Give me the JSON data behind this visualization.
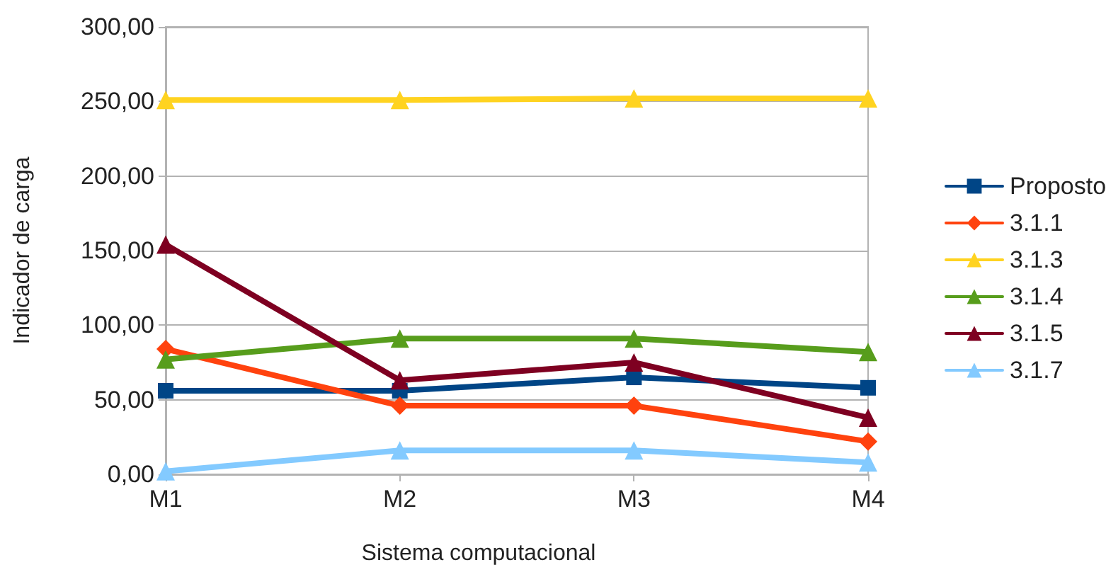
{
  "chart_data": {
    "type": "line",
    "xlabel": "Sistema computacional",
    "ylabel": "Indicador de carga",
    "categories": [
      "M1",
      "M2",
      "M3",
      "M4"
    ],
    "series": [
      {
        "name": "Proposto",
        "color": "#004586",
        "marker": "square",
        "values": [
          56,
          56,
          65,
          58
        ]
      },
      {
        "name": "3.1.1",
        "color": "#ff420e",
        "marker": "diamond",
        "values": [
          84,
          46,
          46,
          22
        ]
      },
      {
        "name": "3.1.3",
        "color": "#ffd320",
        "marker": "triangle",
        "values": [
          251,
          251,
          252,
          252
        ]
      },
      {
        "name": "3.1.4",
        "color": "#579d1c",
        "marker": "triangle",
        "values": [
          77,
          91,
          91,
          82
        ]
      },
      {
        "name": "3.1.5",
        "color": "#7e0021",
        "marker": "triangle",
        "values": [
          154,
          63,
          75,
          38
        ]
      },
      {
        "name": "3.1.7",
        "color": "#83caff",
        "marker": "triangle",
        "values": [
          2,
          16,
          16,
          8
        ]
      }
    ],
    "ylim": [
      0,
      300
    ],
    "yticks": [
      {
        "value": 0,
        "label": "0,00"
      },
      {
        "value": 50,
        "label": "50,00"
      },
      {
        "value": 100,
        "label": "100,00"
      },
      {
        "value": 150,
        "label": "150,00"
      },
      {
        "value": 200,
        "label": "200,00"
      },
      {
        "value": 250,
        "label": "250,00"
      },
      {
        "value": 300,
        "label": "300,00"
      }
    ],
    "grid": "y",
    "legend": "right",
    "line_style": "solid"
  }
}
